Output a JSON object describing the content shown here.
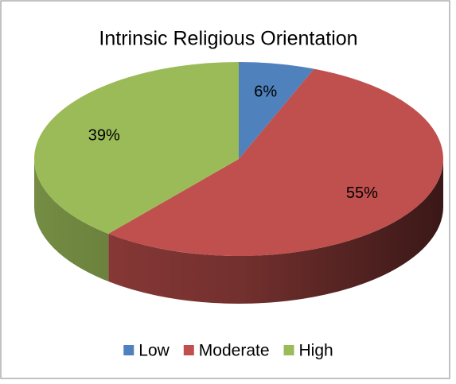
{
  "chart_data": {
    "type": "pie3d",
    "title": "Intrinsic Religious Orientation",
    "categories": [
      "Low",
      "Moderate",
      "High"
    ],
    "values": [
      6,
      55,
      39
    ],
    "value_labels": [
      "6%",
      "55%",
      "39%"
    ],
    "colors": [
      "#4f81bd",
      "#c0504d",
      "#9bbb59"
    ],
    "legend": "bottom"
  }
}
